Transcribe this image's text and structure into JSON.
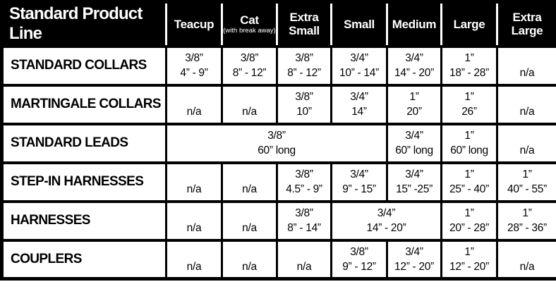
{
  "colors": {
    "header_background": "#000000",
    "header_text": "#ffffff",
    "body_background": "#ffffff",
    "body_text": "#000000",
    "border": "#000000"
  },
  "table": {
    "title": "Standard Product Line",
    "columns": [
      {
        "id": "teacup",
        "label": "Teacup",
        "sub": ""
      },
      {
        "id": "cat",
        "label": "Cat",
        "sub": "(with break away)"
      },
      {
        "id": "extra-small",
        "label": "Extra Small",
        "sub": ""
      },
      {
        "id": "small",
        "label": "Small",
        "sub": ""
      },
      {
        "id": "medium",
        "label": "Medium",
        "sub": ""
      },
      {
        "id": "large",
        "label": "Large",
        "sub": ""
      },
      {
        "id": "extra-large",
        "label": "Extra Large",
        "sub": ""
      }
    ],
    "rows": [
      {
        "label": "STANDARD COLLARS",
        "cells": [
          {
            "span": 1,
            "line1": "3/8”",
            "line2": "4” - 9”"
          },
          {
            "span": 1,
            "line1": "3/8”",
            "line2": "8” - 12”"
          },
          {
            "span": 1,
            "line1": "3/8”",
            "line2": "8” - 12”"
          },
          {
            "span": 1,
            "line1": "3/4”",
            "line2": "10” - 14”"
          },
          {
            "span": 1,
            "line1": "3/4”",
            "line2": "14” - 20”"
          },
          {
            "span": 1,
            "line1": "1”",
            "line2": "18” - 28”"
          },
          {
            "span": 1,
            "line1": "",
            "line2": "n/a"
          }
        ]
      },
      {
        "label": "MARTINGALE COLLARS",
        "cells": [
          {
            "span": 1,
            "line1": "",
            "line2": "n/a"
          },
          {
            "span": 1,
            "line1": "",
            "line2": "n/a"
          },
          {
            "span": 1,
            "line1": "3/8”",
            "line2": "10”"
          },
          {
            "span": 1,
            "line1": "3/4”",
            "line2": "14”"
          },
          {
            "span": 1,
            "line1": "1”",
            "line2": "20”"
          },
          {
            "span": 1,
            "line1": "1”",
            "line2": "26”"
          },
          {
            "span": 1,
            "line1": "",
            "line2": "n/a"
          }
        ]
      },
      {
        "label": "STANDARD LEADS",
        "cells": [
          {
            "span": 4,
            "line1": "3/8”",
            "line2": "60” long"
          },
          {
            "span": 1,
            "line1": "3/4”",
            "line2": "60” long"
          },
          {
            "span": 1,
            "line1": "1”",
            "line2": "60” long"
          },
          {
            "span": 1,
            "line1": "",
            "line2": "n/a"
          }
        ]
      },
      {
        "label": "STEP-IN HARNESSES",
        "cells": [
          {
            "span": 1,
            "line1": "",
            "line2": "n/a"
          },
          {
            "span": 1,
            "line1": "",
            "line2": "n/a"
          },
          {
            "span": 1,
            "line1": "3/8”",
            "line2": "4.5” - 9”"
          },
          {
            "span": 1,
            "line1": "3/4”",
            "line2": "9” - 15”"
          },
          {
            "span": 1,
            "line1": "3/4”",
            "line2": "15” -25”"
          },
          {
            "span": 1,
            "line1": "1”",
            "line2": "25” - 40”"
          },
          {
            "span": 1,
            "line1": "1”",
            "line2": "40” - 55”"
          }
        ]
      },
      {
        "label": "HARNESSES",
        "cells": [
          {
            "span": 1,
            "line1": "",
            "line2": "n/a"
          },
          {
            "span": 1,
            "line1": "",
            "line2": "n/a"
          },
          {
            "span": 1,
            "line1": "3/8”",
            "line2": "8” - 14”"
          },
          {
            "span": 2,
            "line1": "3/4”",
            "line2": "14” - 20”"
          },
          {
            "span": 1,
            "line1": "1”",
            "line2": "20” - 28”"
          },
          {
            "span": 1,
            "line1": "1”",
            "line2": "28” - 36”"
          }
        ]
      },
      {
        "label": "COUPLERS",
        "cells": [
          {
            "span": 1,
            "line1": "",
            "line2": "n/a"
          },
          {
            "span": 1,
            "line1": "",
            "line2": "n/a"
          },
          {
            "span": 1,
            "line1": "",
            "line2": "n/a"
          },
          {
            "span": 1,
            "line1": "3/8”",
            "line2": "9” - 12”"
          },
          {
            "span": 1,
            "line1": "3/4”",
            "line2": "12” - 20”"
          },
          {
            "span": 1,
            "line1": "1”",
            "line2": "12” - 20”"
          },
          {
            "span": 1,
            "line1": "",
            "line2": "n/a"
          }
        ]
      }
    ]
  }
}
